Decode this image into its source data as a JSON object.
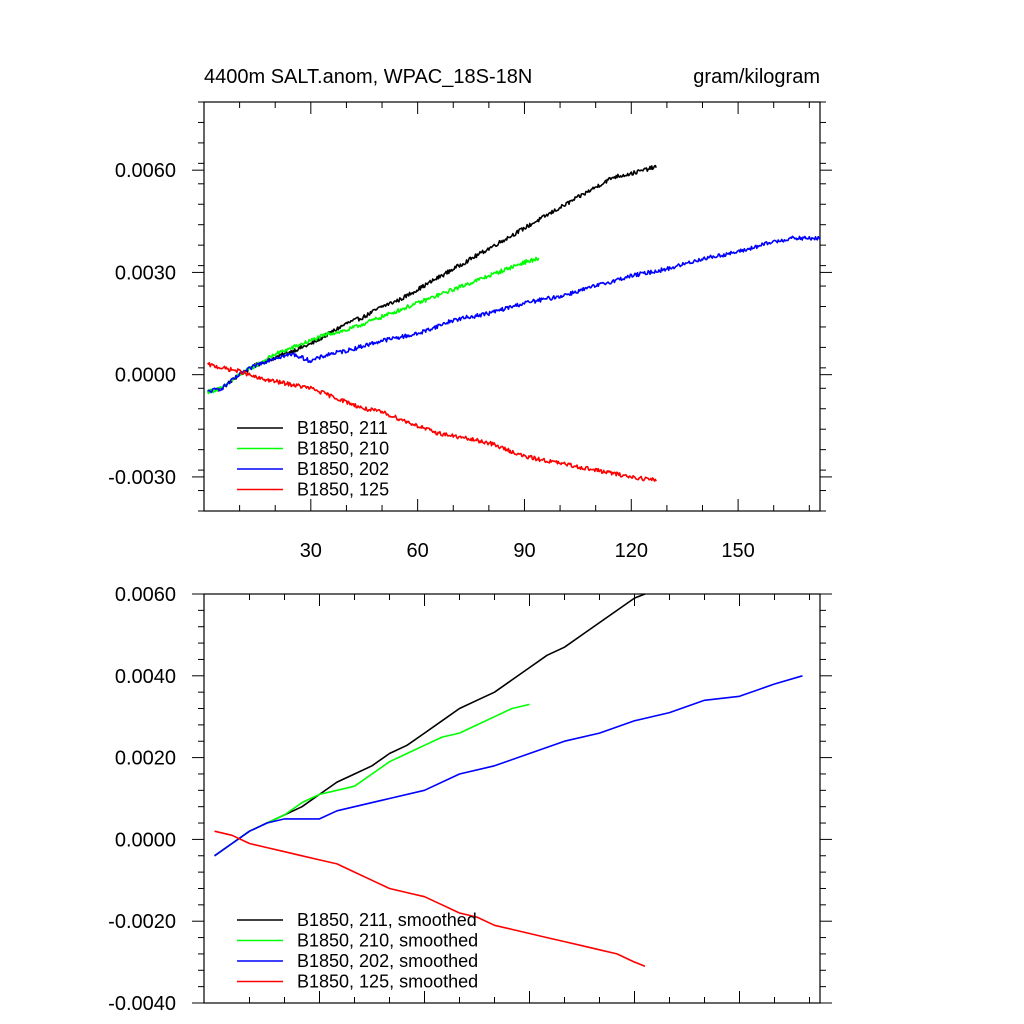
{
  "chart_data": [
    {
      "type": "line",
      "title": "4400m SALT.anom, WPAC_18S-18N",
      "units": "gram/kilogram",
      "xlabel": "",
      "ylabel": "",
      "xlim": [
        0,
        173
      ],
      "ylim": [
        -0.004,
        0.008
      ],
      "x_ticks": [
        30,
        60,
        90,
        120,
        150
      ],
      "y_ticks": [
        -0.003,
        0.0,
        0.003,
        0.006
      ],
      "x_tick_labels": [
        "30",
        "60",
        "90",
        "120",
        "150"
      ],
      "y_tick_labels": [
        "-0.0030",
        "0.0000",
        "0.0030",
        "0.0060"
      ],
      "grid": false,
      "legend_position": "bottom-left",
      "series": [
        {
          "name": "B1850, 211",
          "color": "#000000",
          "noisy": true,
          "x": [
            1,
            5,
            10,
            15,
            20,
            25,
            30,
            35,
            40,
            45,
            50,
            55,
            60,
            65,
            70,
            75,
            80,
            85,
            90,
            95,
            100,
            105,
            110,
            115,
            120,
            127
          ],
          "y": [
            -0.0005,
            -0.0004,
            0.0,
            0.0003,
            0.0005,
            0.0007,
            0.0009,
            0.0012,
            0.0015,
            0.0017,
            0.002,
            0.0022,
            0.0025,
            0.0028,
            0.0031,
            0.0034,
            0.0037,
            0.004,
            0.0043,
            0.0046,
            0.0049,
            0.0052,
            0.0055,
            0.0058,
            0.0059,
            0.0061
          ]
        },
        {
          "name": "B1850, 210",
          "color": "#00ff00",
          "noisy": true,
          "x": [
            1,
            5,
            10,
            15,
            20,
            25,
            30,
            35,
            40,
            45,
            50,
            55,
            60,
            65,
            70,
            75,
            80,
            85,
            90,
            94
          ],
          "y": [
            -0.0005,
            -0.0004,
            0.0,
            0.0003,
            0.0006,
            0.0008,
            0.001,
            0.0012,
            0.0013,
            0.0015,
            0.0017,
            0.0019,
            0.0021,
            0.0023,
            0.0025,
            0.0027,
            0.0029,
            0.0031,
            0.0033,
            0.0034
          ]
        },
        {
          "name": "B1850, 202",
          "color": "#0000ff",
          "noisy": true,
          "x": [
            1,
            5,
            10,
            15,
            20,
            25,
            30,
            35,
            40,
            50,
            60,
            70,
            80,
            90,
            100,
            110,
            120,
            130,
            140,
            150,
            160,
            165,
            173
          ],
          "y": [
            -0.0005,
            -0.0004,
            0.0,
            0.0003,
            0.0005,
            0.0006,
            0.0004,
            0.0006,
            0.0007,
            0.001,
            0.0012,
            0.0016,
            0.0018,
            0.0021,
            0.0023,
            0.0026,
            0.0029,
            0.0031,
            0.0034,
            0.0036,
            0.0039,
            0.004,
            0.004
          ]
        },
        {
          "name": "B1850, 125",
          "color": "#ff0000",
          "noisy": true,
          "x": [
            1,
            5,
            10,
            15,
            20,
            25,
            30,
            35,
            40,
            45,
            50,
            55,
            60,
            65,
            70,
            75,
            80,
            85,
            90,
            95,
            100,
            105,
            110,
            115,
            120,
            127
          ],
          "y": [
            0.0003,
            0.0002,
            0.0001,
            -0.0001,
            -0.0002,
            -0.0003,
            -0.0004,
            -0.0006,
            -0.0008,
            -0.001,
            -0.0011,
            -0.0013,
            -0.0015,
            -0.0017,
            -0.0018,
            -0.0019,
            -0.002,
            -0.0022,
            -0.0024,
            -0.0025,
            -0.0026,
            -0.0027,
            -0.0028,
            -0.0029,
            -0.003,
            -0.0031
          ]
        }
      ]
    },
    {
      "type": "line",
      "title": "",
      "xlabel": "",
      "ylabel": "",
      "xlim": [
        -3,
        173
      ],
      "ylim": [
        -0.004,
        0.006
      ],
      "x_ticks": [
        30,
        60,
        90,
        120,
        150
      ],
      "y_ticks": [
        -0.004,
        -0.002,
        0.0,
        0.002,
        0.004,
        0.006
      ],
      "y_tick_labels": [
        "-0.0040",
        "-0.0020",
        "0.0000",
        "0.0020",
        "0.0040",
        "0.0060"
      ],
      "grid": false,
      "legend_position": "bottom-left",
      "series": [
        {
          "name": "B1850, 211, smoothed",
          "color": "#000000",
          "noisy": false,
          "x": [
            0,
            5,
            10,
            15,
            20,
            25,
            30,
            35,
            40,
            45,
            50,
            55,
            60,
            65,
            70,
            75,
            80,
            85,
            90,
            95,
            100,
            105,
            110,
            115,
            120,
            123
          ],
          "y": [
            -0.0004,
            -0.0001,
            0.0002,
            0.0004,
            0.0006,
            0.0008,
            0.0011,
            0.0014,
            0.0016,
            0.0018,
            0.0021,
            0.0023,
            0.0026,
            0.0029,
            0.0032,
            0.0034,
            0.0036,
            0.0039,
            0.0042,
            0.0045,
            0.0047,
            0.005,
            0.0053,
            0.0056,
            0.0059,
            0.006
          ]
        },
        {
          "name": "B1850, 210, smoothed",
          "color": "#00ff00",
          "noisy": false,
          "x": [
            0,
            5,
            10,
            15,
            20,
            25,
            30,
            35,
            40,
            45,
            50,
            55,
            60,
            65,
            70,
            75,
            80,
            85,
            90
          ],
          "y": [
            -0.0004,
            -0.0001,
            0.0002,
            0.0004,
            0.0006,
            0.0009,
            0.0011,
            0.0012,
            0.0013,
            0.0016,
            0.0019,
            0.0021,
            0.0023,
            0.0025,
            0.0026,
            0.0028,
            0.003,
            0.0032,
            0.0033
          ]
        },
        {
          "name": "B1850, 202, smoothed",
          "color": "#0000ff",
          "noisy": false,
          "x": [
            0,
            5,
            10,
            15,
            20,
            25,
            30,
            35,
            40,
            50,
            60,
            70,
            80,
            90,
            100,
            110,
            120,
            130,
            140,
            150,
            160,
            168
          ],
          "y": [
            -0.0004,
            -0.0001,
            0.0002,
            0.0004,
            0.0005,
            0.0005,
            0.0005,
            0.0007,
            0.0008,
            0.001,
            0.0012,
            0.0016,
            0.0018,
            0.0021,
            0.0024,
            0.0026,
            0.0029,
            0.0031,
            0.0034,
            0.0035,
            0.0038,
            0.004
          ]
        },
        {
          "name": "B1850, 125, smoothed",
          "color": "#ff0000",
          "noisy": false,
          "x": [
            0,
            5,
            10,
            15,
            20,
            25,
            30,
            35,
            40,
            45,
            50,
            55,
            60,
            65,
            70,
            75,
            80,
            85,
            90,
            95,
            100,
            105,
            110,
            115,
            120,
            123
          ],
          "y": [
            0.0002,
            0.0001,
            -0.0001,
            -0.0002,
            -0.0003,
            -0.0004,
            -0.0005,
            -0.0006,
            -0.0008,
            -0.001,
            -0.0012,
            -0.0013,
            -0.0014,
            -0.0016,
            -0.0018,
            -0.0019,
            -0.0021,
            -0.0022,
            -0.0023,
            -0.0024,
            -0.0025,
            -0.0026,
            -0.0027,
            -0.0028,
            -0.003,
            -0.0031
          ]
        }
      ]
    }
  ]
}
